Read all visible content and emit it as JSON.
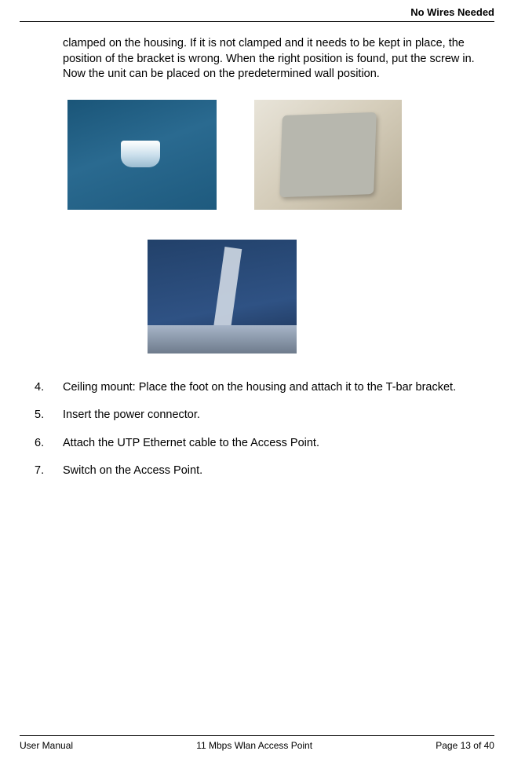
{
  "header": {
    "title": "No Wires Needed"
  },
  "body": {
    "intro": "clamped on the housing. If it is not clamped and it needs to be kept in place, the position of the bracket is wrong. When the right position is found, put the screw in. Now the unit can be placed on the predetermined wall position.",
    "steps": [
      "Ceiling mount: Place the foot on the housing and attach it to the T-bar bracket.",
      "Insert the power connector.",
      "Attach the UTP Ethernet cable to the Access Point.",
      "Switch on the Access Point."
    ]
  },
  "footer": {
    "left": "User Manual",
    "center": "11 Mbps Wlan Access Point",
    "right": "Page 13 of 40"
  }
}
